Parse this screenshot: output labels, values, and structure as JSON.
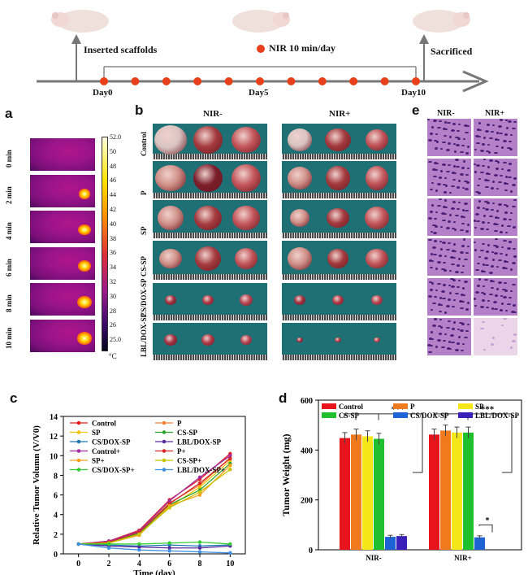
{
  "timeline": {
    "inserted_label": "Inserted scaffolds",
    "nir_label": "NIR 10 min/day",
    "sacrificed_label": "Sacrificed",
    "day0": "Day0",
    "day5": "Day5",
    "day10": "Day10"
  },
  "panel_a": {
    "letter": "a",
    "times": [
      "0 min",
      "2 min",
      "4 min",
      "6 min",
      "8 min",
      "10 min"
    ],
    "scale_ticks": [
      "52.0",
      "50",
      "48",
      "46",
      "44",
      "42",
      "40",
      "38",
      "36",
      "34",
      "32",
      "30",
      "28",
      "26",
      "25.0"
    ],
    "unit": "°C"
  },
  "panel_b": {
    "letter": "b",
    "nir_minus": "NIR-",
    "nir_plus": "NIR+",
    "rows": [
      "Control",
      "P",
      "SP",
      "CS-SP",
      "CS/DOX-SP",
      "LBL/DOX-SP"
    ]
  },
  "panel_e": {
    "letter": "e",
    "nir_minus": "NIR-",
    "nir_plus": "NIR+"
  },
  "chart_data": [
    {
      "type": "line",
      "panel": "c",
      "xlabel": "Time (day)",
      "ylabel": "Relative Tumor Volumn (V/V0)",
      "x": [
        0,
        2,
        4,
        6,
        8,
        10
      ],
      "xlim": [
        -1,
        11
      ],
      "ylim": [
        0,
        14
      ],
      "xticks": [
        "0",
        "2",
        "4",
        "6",
        "8",
        "10"
      ],
      "yticks": [
        "0",
        "2",
        "4",
        "6",
        "8",
        "10",
        "12",
        "14"
      ],
      "series": [
        {
          "name": "Control",
          "color": "#e41a1c",
          "values": [
            1,
            1.3,
            2.4,
            5.5,
            7.6,
            10.2
          ]
        },
        {
          "name": "P",
          "color": "#f58231",
          "values": [
            1,
            1.2,
            2.2,
            5.2,
            7.0,
            9.8
          ]
        },
        {
          "name": "SP",
          "color": "#f2c200",
          "values": [
            1,
            1.2,
            2.0,
            4.8,
            6.8,
            9.5
          ]
        },
        {
          "name": "CS-SP",
          "color": "#2ca02c",
          "values": [
            1,
            1.2,
            2.1,
            5.0,
            6.5,
            9.2
          ]
        },
        {
          "name": "CS/DOX-SP",
          "color": "#1f77b4",
          "values": [
            1,
            0.9,
            0.8,
            0.9,
            0.8,
            0.9
          ]
        },
        {
          "name": "LBL/DOX-SP",
          "color": "#5a2ca0",
          "values": [
            1,
            0.8,
            0.7,
            0.6,
            0.6,
            0.8
          ]
        },
        {
          "name": "Control+",
          "color": "#a12ca0",
          "values": [
            1,
            1.3,
            2.3,
            5.4,
            7.8,
            10.0
          ]
        },
        {
          "name": "P+",
          "color": "#d62728",
          "values": [
            1,
            1.2,
            2.2,
            5.1,
            7.2,
            9.7
          ]
        },
        {
          "name": "SP+",
          "color": "#ff9f1c",
          "values": [
            1,
            1.1,
            1.9,
            4.9,
            6.0,
            9.0
          ]
        },
        {
          "name": "CS-SP+",
          "color": "#c7c400",
          "values": [
            1,
            1.1,
            2.0,
            4.7,
            6.3,
            8.6
          ]
        },
        {
          "name": "CS/DOX-SP+",
          "color": "#33cc33",
          "values": [
            1,
            1.0,
            1.0,
            1.1,
            1.2,
            1.0
          ]
        },
        {
          "name": "LBL/DOX-SP+",
          "color": "#3d8fe0",
          "values": [
            1,
            0.6,
            0.4,
            0.3,
            0.2,
            0.1
          ]
        }
      ]
    },
    {
      "type": "bar",
      "panel": "d",
      "ylabel": "Tumor Weight (mg)",
      "categories": [
        "NIR-",
        "NIR+"
      ],
      "ylim": [
        0,
        600
      ],
      "yticks": [
        "0",
        "200",
        "400",
        "600"
      ],
      "series": [
        {
          "name": "Control",
          "color": "#e8141c",
          "values": [
            448,
            462
          ]
        },
        {
          "name": "P",
          "color": "#f07a1e",
          "values": [
            462,
            478
          ]
        },
        {
          "name": "SP",
          "color": "#f5e61a",
          "values": [
            455,
            470
          ]
        },
        {
          "name": "CS-SP",
          "color": "#1fbf2e",
          "values": [
            445,
            470
          ]
        },
        {
          "name": "CS/DOX-SP",
          "color": "#1e63d6",
          "values": [
            52,
            50
          ]
        },
        {
          "name": "LBL/DOX-SP",
          "color": "#3a1fb8",
          "values": [
            55,
            0
          ]
        }
      ],
      "annotations": [
        "***",
        "***",
        "*"
      ]
    }
  ],
  "panel_c_letter": "c",
  "panel_d_letter": "d"
}
